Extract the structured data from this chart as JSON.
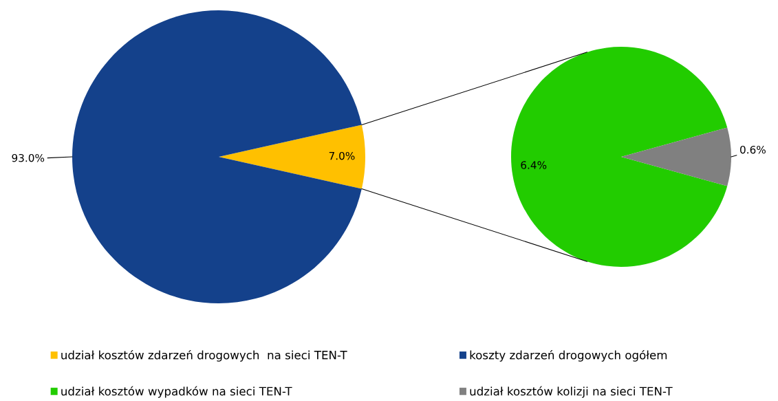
{
  "chart_data": [
    {
      "type": "pie",
      "categories": [
        "udział kosztów zdarzeń drogowych  na sieci TEN-T",
        "koszty zdarzeń drogowych ogółem"
      ],
      "values": [
        7.0,
        93.0
      ],
      "colors": [
        "#ffc000",
        "#14418b"
      ],
      "value_labels": [
        "7.0%",
        "93.0%"
      ],
      "legend": "bottom"
    },
    {
      "type": "pie",
      "categories": [
        "udział kosztów wypadków na sieci TEN-T",
        "udział kosztów kolizji na sieci TEN-T"
      ],
      "values": [
        6.4,
        0.6
      ],
      "colors": [
        "#22cc00",
        "#808080"
      ],
      "value_labels": [
        "6.4%",
        "0.6%"
      ],
      "legend": "bottom"
    }
  ]
}
